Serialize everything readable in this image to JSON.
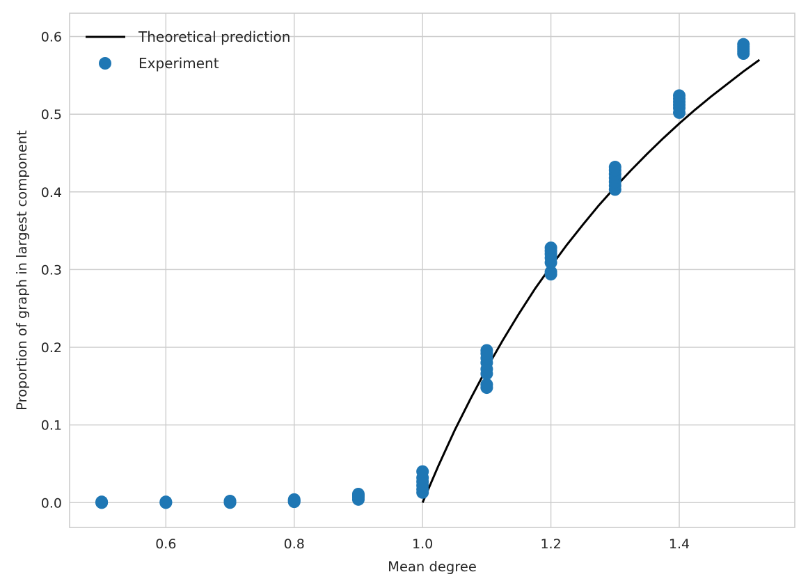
{
  "chart_data": {
    "type": "scatter",
    "xlabel": "Mean degree",
    "ylabel": "Proportion of graph in largest component",
    "xlim": [
      0.45,
      1.58
    ],
    "ylim": [
      -0.032,
      0.63
    ],
    "xticks": [
      0.6,
      0.8,
      1.0,
      1.2,
      1.4
    ],
    "xtick_labels": [
      "0.6",
      "0.8",
      "1.0",
      "1.2",
      "1.4"
    ],
    "yticks": [
      0.0,
      0.1,
      0.2,
      0.3,
      0.4,
      0.5,
      0.6
    ],
    "ytick_labels": [
      "0.0",
      "0.1",
      "0.2",
      "0.3",
      "0.4",
      "0.5",
      "0.6"
    ],
    "grid": true,
    "legend_position": "top-left",
    "colors": {
      "experiment": "#1f77b4",
      "theory": "#000000",
      "grid": "#cccccc",
      "frame": "#cccccc"
    },
    "series": [
      {
        "name": "Theoretical prediction",
        "type": "line",
        "x": [
          1.0,
          1.025,
          1.05,
          1.075,
          1.1,
          1.125,
          1.15,
          1.175,
          1.2,
          1.225,
          1.25,
          1.275,
          1.3,
          1.325,
          1.35,
          1.375,
          1.4,
          1.425,
          1.45,
          1.475,
          1.5,
          1.525
        ],
        "y": [
          0.0,
          0.048,
          0.093,
          0.134,
          0.173,
          0.209,
          0.243,
          0.275,
          0.304,
          0.332,
          0.358,
          0.383,
          0.406,
          0.428,
          0.449,
          0.469,
          0.488,
          0.506,
          0.523,
          0.539,
          0.555,
          0.57
        ]
      },
      {
        "name": "Experiment",
        "type": "scatter",
        "points": [
          [
            0.5,
            0.0
          ],
          [
            0.5,
            0.0
          ],
          [
            0.5,
            0.001
          ],
          [
            0.6,
            0.0
          ],
          [
            0.6,
            0.001
          ],
          [
            0.6,
            0.0
          ],
          [
            0.7,
            0.0
          ],
          [
            0.7,
            0.001
          ],
          [
            0.7,
            0.002
          ],
          [
            0.8,
            0.001
          ],
          [
            0.8,
            0.002
          ],
          [
            0.8,
            0.003
          ],
          [
            0.8,
            0.004
          ],
          [
            0.9,
            0.004
          ],
          [
            0.9,
            0.007
          ],
          [
            0.9,
            0.009
          ],
          [
            0.9,
            0.011
          ],
          [
            1.0,
            0.013
          ],
          [
            1.0,
            0.017
          ],
          [
            1.0,
            0.022
          ],
          [
            1.0,
            0.027
          ],
          [
            1.0,
            0.032
          ],
          [
            1.0,
            0.04
          ],
          [
            1.1,
            0.148
          ],
          [
            1.1,
            0.152
          ],
          [
            1.1,
            0.166
          ],
          [
            1.1,
            0.172
          ],
          [
            1.1,
            0.18
          ],
          [
            1.1,
            0.186
          ],
          [
            1.1,
            0.192
          ],
          [
            1.1,
            0.196
          ],
          [
            1.2,
            0.294
          ],
          [
            1.2,
            0.297
          ],
          [
            1.2,
            0.309
          ],
          [
            1.2,
            0.315
          ],
          [
            1.2,
            0.32
          ],
          [
            1.2,
            0.324
          ],
          [
            1.2,
            0.328
          ],
          [
            1.3,
            0.403
          ],
          [
            1.3,
            0.408
          ],
          [
            1.3,
            0.413
          ],
          [
            1.3,
            0.418
          ],
          [
            1.3,
            0.423
          ],
          [
            1.3,
            0.428
          ],
          [
            1.3,
            0.432
          ],
          [
            1.4,
            0.502
          ],
          [
            1.4,
            0.508
          ],
          [
            1.4,
            0.512
          ],
          [
            1.4,
            0.516
          ],
          [
            1.4,
            0.52
          ],
          [
            1.4,
            0.524
          ],
          [
            1.5,
            0.578
          ],
          [
            1.5,
            0.581
          ],
          [
            1.5,
            0.584
          ],
          [
            1.5,
            0.587
          ],
          [
            1.5,
            0.59
          ]
        ]
      }
    ]
  }
}
